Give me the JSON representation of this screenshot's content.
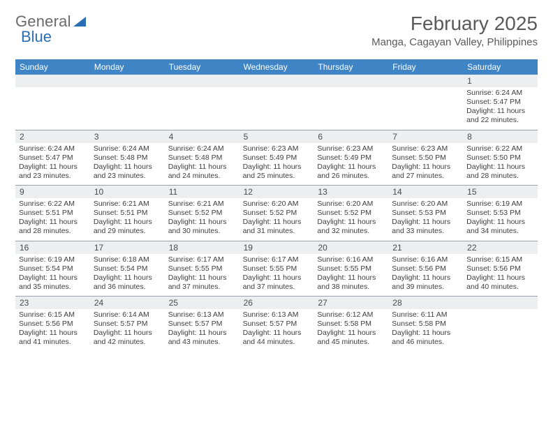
{
  "logo": {
    "text1": "General",
    "text2": "Blue"
  },
  "title": "February 2025",
  "location": "Manga, Cagayan Valley, Philippines",
  "header_bg": "#3f85c6",
  "band_bg": "#edeeef",
  "days_of_week": [
    "Sunday",
    "Monday",
    "Tuesday",
    "Wednesday",
    "Thursday",
    "Friday",
    "Saturday"
  ],
  "weeks": [
    {
      "nums": [
        "",
        "",
        "",
        "",
        "",
        "",
        "1"
      ],
      "cells": [
        null,
        null,
        null,
        null,
        null,
        null,
        {
          "sunrise": "Sunrise: 6:24 AM",
          "sunset": "Sunset: 5:47 PM",
          "day1": "Daylight: 11 hours",
          "day2": "and 22 minutes."
        }
      ]
    },
    {
      "nums": [
        "2",
        "3",
        "4",
        "5",
        "6",
        "7",
        "8"
      ],
      "cells": [
        {
          "sunrise": "Sunrise: 6:24 AM",
          "sunset": "Sunset: 5:47 PM",
          "day1": "Daylight: 11 hours",
          "day2": "and 23 minutes."
        },
        {
          "sunrise": "Sunrise: 6:24 AM",
          "sunset": "Sunset: 5:48 PM",
          "day1": "Daylight: 11 hours",
          "day2": "and 23 minutes."
        },
        {
          "sunrise": "Sunrise: 6:24 AM",
          "sunset": "Sunset: 5:48 PM",
          "day1": "Daylight: 11 hours",
          "day2": "and 24 minutes."
        },
        {
          "sunrise": "Sunrise: 6:23 AM",
          "sunset": "Sunset: 5:49 PM",
          "day1": "Daylight: 11 hours",
          "day2": "and 25 minutes."
        },
        {
          "sunrise": "Sunrise: 6:23 AM",
          "sunset": "Sunset: 5:49 PM",
          "day1": "Daylight: 11 hours",
          "day2": "and 26 minutes."
        },
        {
          "sunrise": "Sunrise: 6:23 AM",
          "sunset": "Sunset: 5:50 PM",
          "day1": "Daylight: 11 hours",
          "day2": "and 27 minutes."
        },
        {
          "sunrise": "Sunrise: 6:22 AM",
          "sunset": "Sunset: 5:50 PM",
          "day1": "Daylight: 11 hours",
          "day2": "and 28 minutes."
        }
      ]
    },
    {
      "nums": [
        "9",
        "10",
        "11",
        "12",
        "13",
        "14",
        "15"
      ],
      "cells": [
        {
          "sunrise": "Sunrise: 6:22 AM",
          "sunset": "Sunset: 5:51 PM",
          "day1": "Daylight: 11 hours",
          "day2": "and 28 minutes."
        },
        {
          "sunrise": "Sunrise: 6:21 AM",
          "sunset": "Sunset: 5:51 PM",
          "day1": "Daylight: 11 hours",
          "day2": "and 29 minutes."
        },
        {
          "sunrise": "Sunrise: 6:21 AM",
          "sunset": "Sunset: 5:52 PM",
          "day1": "Daylight: 11 hours",
          "day2": "and 30 minutes."
        },
        {
          "sunrise": "Sunrise: 6:20 AM",
          "sunset": "Sunset: 5:52 PM",
          "day1": "Daylight: 11 hours",
          "day2": "and 31 minutes."
        },
        {
          "sunrise": "Sunrise: 6:20 AM",
          "sunset": "Sunset: 5:52 PM",
          "day1": "Daylight: 11 hours",
          "day2": "and 32 minutes."
        },
        {
          "sunrise": "Sunrise: 6:20 AM",
          "sunset": "Sunset: 5:53 PM",
          "day1": "Daylight: 11 hours",
          "day2": "and 33 minutes."
        },
        {
          "sunrise": "Sunrise: 6:19 AM",
          "sunset": "Sunset: 5:53 PM",
          "day1": "Daylight: 11 hours",
          "day2": "and 34 minutes."
        }
      ]
    },
    {
      "nums": [
        "16",
        "17",
        "18",
        "19",
        "20",
        "21",
        "22"
      ],
      "cells": [
        {
          "sunrise": "Sunrise: 6:19 AM",
          "sunset": "Sunset: 5:54 PM",
          "day1": "Daylight: 11 hours",
          "day2": "and 35 minutes."
        },
        {
          "sunrise": "Sunrise: 6:18 AM",
          "sunset": "Sunset: 5:54 PM",
          "day1": "Daylight: 11 hours",
          "day2": "and 36 minutes."
        },
        {
          "sunrise": "Sunrise: 6:17 AM",
          "sunset": "Sunset: 5:55 PM",
          "day1": "Daylight: 11 hours",
          "day2": "and 37 minutes."
        },
        {
          "sunrise": "Sunrise: 6:17 AM",
          "sunset": "Sunset: 5:55 PM",
          "day1": "Daylight: 11 hours",
          "day2": "and 37 minutes."
        },
        {
          "sunrise": "Sunrise: 6:16 AM",
          "sunset": "Sunset: 5:55 PM",
          "day1": "Daylight: 11 hours",
          "day2": "and 38 minutes."
        },
        {
          "sunrise": "Sunrise: 6:16 AM",
          "sunset": "Sunset: 5:56 PM",
          "day1": "Daylight: 11 hours",
          "day2": "and 39 minutes."
        },
        {
          "sunrise": "Sunrise: 6:15 AM",
          "sunset": "Sunset: 5:56 PM",
          "day1": "Daylight: 11 hours",
          "day2": "and 40 minutes."
        }
      ]
    },
    {
      "nums": [
        "23",
        "24",
        "25",
        "26",
        "27",
        "28",
        ""
      ],
      "cells": [
        {
          "sunrise": "Sunrise: 6:15 AM",
          "sunset": "Sunset: 5:56 PM",
          "day1": "Daylight: 11 hours",
          "day2": "and 41 minutes."
        },
        {
          "sunrise": "Sunrise: 6:14 AM",
          "sunset": "Sunset: 5:57 PM",
          "day1": "Daylight: 11 hours",
          "day2": "and 42 minutes."
        },
        {
          "sunrise": "Sunrise: 6:13 AM",
          "sunset": "Sunset: 5:57 PM",
          "day1": "Daylight: 11 hours",
          "day2": "and 43 minutes."
        },
        {
          "sunrise": "Sunrise: 6:13 AM",
          "sunset": "Sunset: 5:57 PM",
          "day1": "Daylight: 11 hours",
          "day2": "and 44 minutes."
        },
        {
          "sunrise": "Sunrise: 6:12 AM",
          "sunset": "Sunset: 5:58 PM",
          "day1": "Daylight: 11 hours",
          "day2": "and 45 minutes."
        },
        {
          "sunrise": "Sunrise: 6:11 AM",
          "sunset": "Sunset: 5:58 PM",
          "day1": "Daylight: 11 hours",
          "day2": "and 46 minutes."
        },
        null
      ]
    }
  ]
}
